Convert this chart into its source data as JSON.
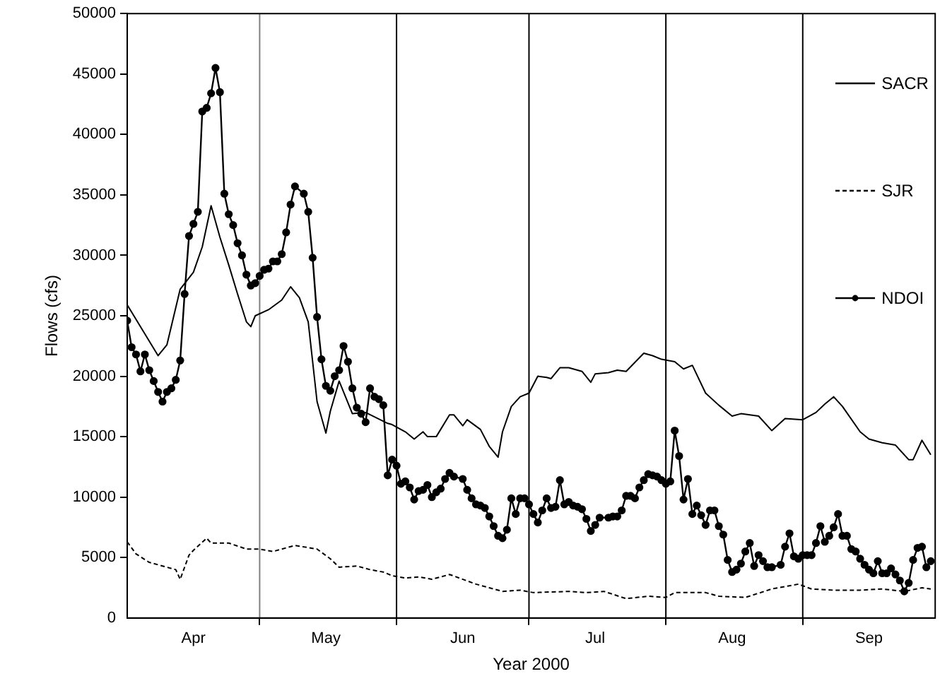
{
  "chart_data": {
    "type": "line",
    "xlabel": "Year 2000",
    "ylabel": "Flows (cfs)",
    "xlim": [
      "2000-04-01",
      "2000-10-01"
    ],
    "ylim": [
      0,
      50000
    ],
    "yticks": [
      0,
      5000,
      10000,
      15000,
      20000,
      25000,
      30000,
      35000,
      40000,
      45000,
      50000
    ],
    "xticks": [
      {
        "value": "2000-04-16",
        "label": "Apr"
      },
      {
        "value": "2000-05-01",
        "label": null
      },
      {
        "value": "2000-05-16",
        "label": "May"
      },
      {
        "value": "2000-06-01",
        "label": null
      },
      {
        "value": "2000-06-16",
        "label": "Jun"
      },
      {
        "value": "2000-07-01",
        "label": null
      },
      {
        "value": "2000-07-16",
        "label": "Jul"
      },
      {
        "value": "2000-08-01",
        "label": null
      },
      {
        "value": "2000-08-16",
        "label": "Aug"
      },
      {
        "value": "2000-09-01",
        "label": null
      },
      {
        "value": "2000-09-16",
        "label": "Sep"
      }
    ],
    "ref_lines": [
      {
        "axis": "x",
        "value": "2000-05-01",
        "color": "#808080"
      },
      {
        "axis": "x",
        "value": "2000-06-01",
        "color": "#000000"
      },
      {
        "axis": "x",
        "value": "2000-07-01",
        "color": "#000000"
      },
      {
        "axis": "x",
        "value": "2000-08-01",
        "color": "#000000"
      },
      {
        "axis": "x",
        "value": "2000-09-01",
        "color": "#000000"
      }
    ],
    "grid": false,
    "legend": "right",
    "series": [
      {
        "name": "SACR",
        "color": "#000000",
        "line_style": "solid",
        "marker": "none",
        "x": [
          "2000-04-01",
          "2000-04-08",
          "2000-04-10",
          "2000-04-13",
          "2000-04-16",
          "2000-04-18",
          "2000-04-20",
          "2000-04-22",
          "2000-04-24",
          "2000-04-26",
          "2000-04-28",
          "2000-04-29",
          "2000-04-30",
          "2000-05-03",
          "2000-05-06",
          "2000-05-08",
          "2000-05-10",
          "2000-05-12",
          "2000-05-14",
          "2000-05-16",
          "2000-05-17",
          "2000-05-19",
          "2000-05-22",
          "2000-05-25",
          "2000-05-30",
          "2000-05-31",
          "2000-06-03",
          "2000-06-05",
          "2000-06-07",
          "2000-06-08",
          "2000-06-10",
          "2000-06-13",
          "2000-06-14",
          "2000-06-16",
          "2000-06-17",
          "2000-06-20",
          "2000-06-22",
          "2000-06-24",
          "2000-06-25",
          "2000-06-27",
          "2000-06-29",
          "2000-07-01",
          "2000-07-03",
          "2000-07-05",
          "2000-07-06",
          "2000-07-08",
          "2000-07-10",
          "2000-07-13",
          "2000-07-15",
          "2000-07-16",
          "2000-07-19",
          "2000-07-21",
          "2000-07-23",
          "2000-07-27",
          "2000-07-29",
          "2000-07-31",
          "2000-08-03",
          "2000-08-05",
          "2000-08-07",
          "2000-08-10",
          "2000-08-13",
          "2000-08-16",
          "2000-08-18",
          "2000-08-22",
          "2000-08-25",
          "2000-08-28",
          "2000-09-01",
          "2000-09-04",
          "2000-09-06",
          "2000-09-08",
          "2000-09-10",
          "2000-09-14",
          "2000-09-16",
          "2000-09-19",
          "2000-09-22",
          "2000-09-25",
          "2000-09-26",
          "2000-09-28",
          "2000-09-29",
          "2000-09-30"
        ],
        "values": [
          25900,
          21700,
          22600,
          27200,
          28600,
          30700,
          34100,
          31500,
          29200,
          26800,
          24500,
          24100,
          25000,
          25500,
          26300,
          27400,
          26500,
          24500,
          17900,
          15300,
          17100,
          19600,
          16900,
          17000,
          16100,
          16000,
          15400,
          14800,
          15400,
          15000,
          15000,
          16800,
          16800,
          15900,
          16400,
          15600,
          14200,
          13300,
          15400,
          17500,
          18300,
          18600,
          20000,
          19900,
          19800,
          20700,
          20700,
          20400,
          19500,
          20200,
          20300,
          20500,
          20400,
          21900,
          21700,
          21400,
          21200,
          20600,
          20900,
          18600,
          17600,
          16700,
          16900,
          16700,
          15500,
          16500,
          16400,
          17000,
          17700,
          18300,
          17500,
          15400,
          14800,
          14500,
          14300,
          13100,
          13100,
          14700,
          14100,
          13500
        ]
      },
      {
        "name": "SJR",
        "color": "#000000",
        "line_style": "dashed",
        "marker": "none",
        "x": [
          "2000-04-01",
          "2000-04-03",
          "2000-04-06",
          "2000-04-09",
          "2000-04-12",
          "2000-04-13",
          "2000-04-15",
          "2000-04-16",
          "2000-04-19",
          "2000-04-20",
          "2000-04-24",
          "2000-04-28",
          "2000-05-01",
          "2000-05-04",
          "2000-05-09",
          "2000-05-14",
          "2000-05-17",
          "2000-05-19",
          "2000-05-23",
          "2000-05-26",
          "2000-05-29",
          "2000-05-31",
          "2000-06-03",
          "2000-06-06",
          "2000-06-09",
          "2000-06-13",
          "2000-06-19",
          "2000-06-22",
          "2000-06-25",
          "2000-06-29",
          "2000-07-02",
          "2000-07-10",
          "2000-07-14",
          "2000-07-18",
          "2000-07-23",
          "2000-07-28",
          "2000-08-01",
          "2000-08-03",
          "2000-08-10",
          "2000-08-13",
          "2000-08-19",
          "2000-08-25",
          "2000-08-31",
          "2000-09-03",
          "2000-09-08",
          "2000-09-14",
          "2000-09-19",
          "2000-09-24",
          "2000-09-28",
          "2000-09-30"
        ],
        "values": [
          6300,
          5300,
          4600,
          4300,
          4000,
          3200,
          5200,
          5600,
          6600,
          6200,
          6200,
          5700,
          5700,
          5500,
          6000,
          5700,
          4900,
          4200,
          4300,
          4000,
          3800,
          3500,
          3300,
          3400,
          3200,
          3600,
          2800,
          2500,
          2200,
          2300,
          2100,
          2200,
          2100,
          2200,
          1600,
          1800,
          1700,
          2100,
          2100,
          1800,
          1700,
          2400,
          2800,
          2400,
          2300,
          2300,
          2400,
          2200,
          2500,
          2400
        ]
      },
      {
        "name": "NDOI",
        "color": "#000000",
        "line_style": "solid",
        "marker": "circle",
        "x": [
          "2000-04-01",
          "2000-04-02",
          "2000-04-03",
          "2000-04-04",
          "2000-04-05",
          "2000-04-06",
          "2000-04-07",
          "2000-04-08",
          "2000-04-09",
          "2000-04-10",
          "2000-04-11",
          "2000-04-12",
          "2000-04-13",
          "2000-04-14",
          "2000-04-15",
          "2000-04-16",
          "2000-04-17",
          "2000-04-18",
          "2000-04-19",
          "2000-04-20",
          "2000-04-21",
          "2000-04-22",
          "2000-04-23",
          "2000-04-24",
          "2000-04-25",
          "2000-04-26",
          "2000-04-27",
          "2000-04-28",
          "2000-04-29",
          "2000-04-30",
          "2000-05-01",
          "2000-05-02",
          "2000-05-03",
          "2000-05-04",
          "2000-05-05",
          "2000-05-06",
          "2000-05-07",
          "2000-05-08",
          "2000-05-09",
          "2000-05-11",
          "2000-05-12",
          "2000-05-13",
          "2000-05-14",
          "2000-05-15",
          "2000-05-16",
          "2000-05-17",
          "2000-05-18",
          "2000-05-19",
          "2000-05-20",
          "2000-05-21",
          "2000-05-22",
          "2000-05-23",
          "2000-05-24",
          "2000-05-25",
          "2000-05-26",
          "2000-05-27",
          "2000-05-28",
          "2000-05-29",
          "2000-05-30",
          "2000-05-31",
          "2000-06-01",
          "2000-06-02",
          "2000-06-03",
          "2000-06-04",
          "2000-06-05",
          "2000-06-06",
          "2000-06-07",
          "2000-06-08",
          "2000-06-09",
          "2000-06-10",
          "2000-06-11",
          "2000-06-12",
          "2000-06-13",
          "2000-06-14",
          "2000-06-16",
          "2000-06-17",
          "2000-06-18",
          "2000-06-19",
          "2000-06-20",
          "2000-06-21",
          "2000-06-22",
          "2000-06-23",
          "2000-06-24",
          "2000-06-25",
          "2000-06-26",
          "2000-06-27",
          "2000-06-28",
          "2000-06-29",
          "2000-06-30",
          "2000-07-01",
          "2000-07-02",
          "2000-07-03",
          "2000-07-04",
          "2000-07-05",
          "2000-07-06",
          "2000-07-07",
          "2000-07-08",
          "2000-07-09",
          "2000-07-10",
          "2000-07-11",
          "2000-07-12",
          "2000-07-13",
          "2000-07-14",
          "2000-07-15",
          "2000-07-16",
          "2000-07-17",
          "2000-07-19",
          "2000-07-20",
          "2000-07-21",
          "2000-07-22",
          "2000-07-23",
          "2000-07-24",
          "2000-07-25",
          "2000-07-26",
          "2000-07-27",
          "2000-07-28",
          "2000-07-29",
          "2000-07-30",
          "2000-07-31",
          "2000-08-01",
          "2000-08-02",
          "2000-08-03",
          "2000-08-04",
          "2000-08-05",
          "2000-08-06",
          "2000-08-07",
          "2000-08-08",
          "2000-08-09",
          "2000-08-10",
          "2000-08-11",
          "2000-08-12",
          "2000-08-13",
          "2000-08-14",
          "2000-08-15",
          "2000-08-16",
          "2000-08-17",
          "2000-08-18",
          "2000-08-19",
          "2000-08-20",
          "2000-08-21",
          "2000-08-22",
          "2000-08-23",
          "2000-08-24",
          "2000-08-25",
          "2000-08-27",
          "2000-08-28",
          "2000-08-29",
          "2000-08-30",
          "2000-08-31",
          "2000-09-01",
          "2000-09-02",
          "2000-09-03",
          "2000-09-04",
          "2000-09-05",
          "2000-09-06",
          "2000-09-07",
          "2000-09-08",
          "2000-09-09",
          "2000-09-10",
          "2000-09-11",
          "2000-09-12",
          "2000-09-13",
          "2000-09-14",
          "2000-09-15",
          "2000-09-16",
          "2000-09-17",
          "2000-09-18",
          "2000-09-19",
          "2000-09-20",
          "2000-09-21",
          "2000-09-22",
          "2000-09-23",
          "2000-09-24",
          "2000-09-25",
          "2000-09-26",
          "2000-09-27",
          "2000-09-28",
          "2000-09-29",
          "2000-09-30"
        ],
        "values": [
          24600,
          22400,
          21800,
          20400,
          21800,
          20500,
          19600,
          18700,
          17900,
          18700,
          19000,
          19700,
          21300,
          26800,
          31600,
          32600,
          33600,
          41900,
          42200,
          43400,
          45500,
          43500,
          35100,
          33400,
          32500,
          31000,
          30000,
          28400,
          27500,
          27700,
          28300,
          28800,
          28900,
          29500,
          29500,
          30100,
          31900,
          34200,
          35700,
          35100,
          33600,
          29800,
          24900,
          21400,
          19200,
          18800,
          20000,
          20500,
          22500,
          21200,
          19000,
          17400,
          16900,
          16200,
          19000,
          18300,
          18100,
          17600,
          11800,
          13100,
          12600,
          11100,
          11300,
          10800,
          9800,
          10500,
          10600,
          11000,
          10000,
          10400,
          10700,
          11500,
          12000,
          11700,
          11500,
          10600,
          9900,
          9400,
          9300,
          9100,
          8400,
          7600,
          6800,
          6600,
          7300,
          9900,
          8600,
          9900,
          9900,
          9400,
          8600,
          7900,
          8900,
          9900,
          9100,
          9200,
          11400,
          9400,
          9600,
          9300,
          9200,
          9000,
          8200,
          7200,
          7700,
          8300,
          8300,
          8400,
          8400,
          8900,
          10100,
          10100,
          9900,
          10800,
          11400,
          11900,
          11800,
          11700,
          11400,
          11100,
          11300,
          15500,
          13400,
          9800,
          11500,
          8600,
          9300,
          8500,
          7700,
          8900,
          8900,
          7600,
          6900,
          4800,
          3800,
          4000,
          4500,
          5500,
          6200,
          4300,
          5200,
          4700,
          4200,
          4200,
          4400,
          5900,
          7000,
          5100,
          4900,
          5200,
          5200,
          5200,
          6200,
          7600,
          6300,
          6800,
          7500,
          8600,
          6800,
          6800,
          5700,
          5500,
          4900,
          4400,
          4000,
          3700,
          4700,
          3700,
          3700,
          4100,
          3600,
          3100,
          2200,
          2900,
          4800,
          5800,
          5900,
          4200,
          4700
        ]
      }
    ]
  }
}
